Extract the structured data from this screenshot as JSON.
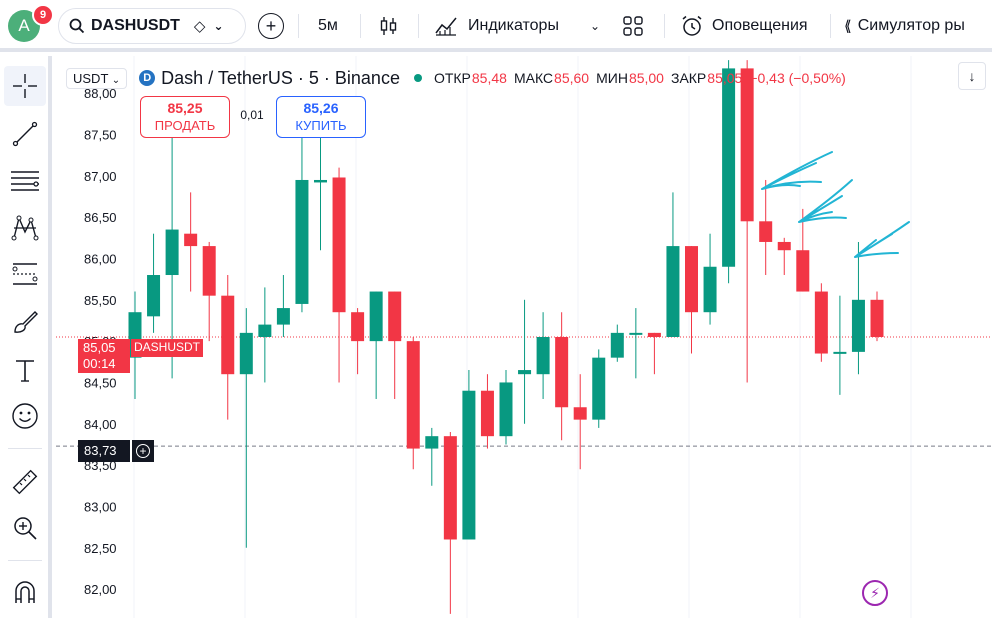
{
  "topbar": {
    "avatar_letter": "A",
    "notification_count": "9",
    "symbol": "DASHUSDT",
    "interval": "5м",
    "indicators_label": "Индикаторы",
    "alerts_label": "Оповещения",
    "replay_label": "Симулятор ры"
  },
  "legend": {
    "currency": "USDT",
    "title": "Dash / TetherUS · 5 · Binance",
    "open_label": "ОТКР",
    "open": "85,48",
    "high_label": "МАКС",
    "high": "85,60",
    "low_label": "МИН",
    "low": "85,00",
    "close_label": "ЗАКР",
    "close": "85,05",
    "change": "−0,43 (−0,50%)"
  },
  "trade": {
    "sell_price": "85,25",
    "sell_label": "ПРОДАТЬ",
    "spread": "0,01",
    "buy_price": "85,26",
    "buy_label": "КУПИТЬ"
  },
  "price_tags": {
    "last_price": "85,05",
    "countdown": "00:14",
    "symbol_tag": "DASHUSDT",
    "crosshair_price": "83,73"
  },
  "colors": {
    "up": "#089981",
    "down": "#f23645",
    "drawing": "#22b5d4"
  },
  "chart_data": {
    "type": "candlestick",
    "y_ticks": [
      "88,00",
      "87,50",
      "87,00",
      "86,50",
      "86,00",
      "85,50",
      "85,00",
      "84,50",
      "84,00",
      "83,50",
      "83,00",
      "82,50",
      "82,00"
    ],
    "ylim": [
      81.65,
      88.45
    ],
    "last_price": 85.05,
    "crosshair_price": 83.73,
    "candles": [
      {
        "o": 84.8,
        "h": 85.6,
        "l": 84.3,
        "c": 85.35
      },
      {
        "o": 85.3,
        "h": 86.3,
        "l": 85.1,
        "c": 85.8
      },
      {
        "o": 85.8,
        "h": 87.65,
        "l": 84.55,
        "c": 86.35
      },
      {
        "o": 86.3,
        "h": 86.8,
        "l": 85.6,
        "c": 86.15
      },
      {
        "o": 86.15,
        "h": 86.2,
        "l": 85.0,
        "c": 85.55
      },
      {
        "o": 85.55,
        "h": 85.8,
        "l": 84.05,
        "c": 84.6
      },
      {
        "o": 84.6,
        "h": 85.4,
        "l": 82.5,
        "c": 85.1
      },
      {
        "o": 85.05,
        "h": 85.65,
        "l": 84.5,
        "c": 85.2
      },
      {
        "o": 85.2,
        "h": 85.8,
        "l": 85.05,
        "c": 85.4
      },
      {
        "o": 85.45,
        "h": 87.7,
        "l": 85.35,
        "c": 86.95
      },
      {
        "o": 86.92,
        "h": 87.65,
        "l": 86.1,
        "c": 86.95
      },
      {
        "o": 86.98,
        "h": 87.1,
        "l": 84.5,
        "c": 85.35
      },
      {
        "o": 85.35,
        "h": 85.4,
        "l": 84.6,
        "c": 85.0
      },
      {
        "o": 85.0,
        "h": 85.6,
        "l": 84.3,
        "c": 85.6
      },
      {
        "o": 85.6,
        "h": 85.6,
        "l": 84.3,
        "c": 85.0
      },
      {
        "o": 85.0,
        "h": 85.05,
        "l": 83.45,
        "c": 83.7
      },
      {
        "o": 83.7,
        "h": 83.95,
        "l": 83.25,
        "c": 83.85
      },
      {
        "o": 83.85,
        "h": 83.9,
        "l": 81.7,
        "c": 82.6
      },
      {
        "o": 82.6,
        "h": 84.65,
        "l": 82.6,
        "c": 84.4
      },
      {
        "o": 84.4,
        "h": 84.6,
        "l": 83.7,
        "c": 83.85
      },
      {
        "o": 83.85,
        "h": 84.65,
        "l": 83.75,
        "c": 84.5
      },
      {
        "o": 84.6,
        "h": 85.5,
        "l": 84.0,
        "c": 84.65
      },
      {
        "o": 84.6,
        "h": 85.35,
        "l": 84.3,
        "c": 85.05
      },
      {
        "o": 85.05,
        "h": 85.35,
        "l": 83.8,
        "c": 84.2
      },
      {
        "o": 84.2,
        "h": 84.6,
        "l": 83.45,
        "c": 84.05
      },
      {
        "o": 84.05,
        "h": 84.9,
        "l": 83.95,
        "c": 84.8
      },
      {
        "o": 84.8,
        "h": 85.2,
        "l": 84.75,
        "c": 85.1
      },
      {
        "o": 85.1,
        "h": 85.4,
        "l": 84.55,
        "c": 85.1
      },
      {
        "o": 85.1,
        "h": 85.1,
        "l": 84.6,
        "c": 85.05
      },
      {
        "o": 85.05,
        "h": 86.8,
        "l": 85.05,
        "c": 86.15
      },
      {
        "o": 86.15,
        "h": 86.15,
        "l": 84.85,
        "c": 85.35
      },
      {
        "o": 85.35,
        "h": 86.3,
        "l": 85.2,
        "c": 85.9
      },
      {
        "o": 85.9,
        "h": 88.4,
        "l": 85.7,
        "c": 88.3
      },
      {
        "o": 88.3,
        "h": 88.4,
        "l": 84.5,
        "c": 86.45
      },
      {
        "o": 86.45,
        "h": 86.95,
        "l": 85.8,
        "c": 86.2
      },
      {
        "o": 86.2,
        "h": 86.25,
        "l": 85.8,
        "c": 86.1
      },
      {
        "o": 86.1,
        "h": 86.6,
        "l": 85.6,
        "c": 85.6
      },
      {
        "o": 85.6,
        "h": 85.7,
        "l": 84.75,
        "c": 84.85
      },
      {
        "o": 84.85,
        "h": 85.55,
        "l": 84.35,
        "c": 84.87
      },
      {
        "o": 84.87,
        "h": 86.2,
        "l": 84.6,
        "c": 85.5
      },
      {
        "o": 85.5,
        "h": 85.6,
        "l": 85.0,
        "c": 85.05
      }
    ]
  }
}
